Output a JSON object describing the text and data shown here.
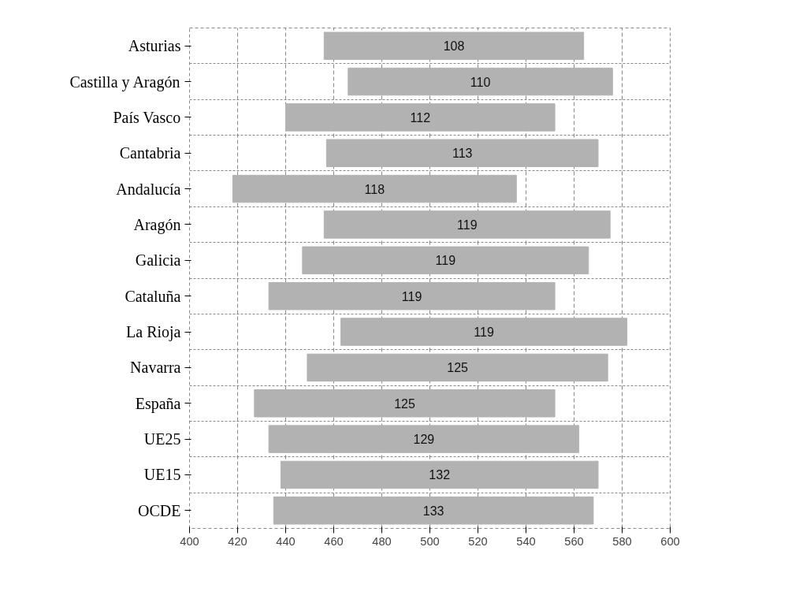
{
  "chart_data": {
    "type": "bar",
    "orientation": "horizontal",
    "categories": [
      "Asturias",
      "Castilla y Aragón",
      "País Vasco",
      "Cantabria",
      "Andalucía",
      "Aragón",
      "Galicia",
      "Cataluña",
      "La Rioja",
      "Navarra",
      "España",
      "UE25",
      "UE15",
      "OCDE"
    ],
    "base": [
      456,
      466,
      440,
      457,
      418,
      456,
      447,
      433,
      463,
      449,
      427,
      433,
      438,
      435
    ],
    "values": [
      108,
      110,
      112,
      113,
      118,
      119,
      119,
      119,
      119,
      125,
      125,
      129,
      132,
      133
    ],
    "color": "#b2b2b2",
    "data_labels": true,
    "xlim": [
      400,
      600
    ],
    "xticks": [
      400,
      420,
      440,
      460,
      480,
      500,
      520,
      540,
      560,
      580,
      600
    ],
    "grid": true
  }
}
